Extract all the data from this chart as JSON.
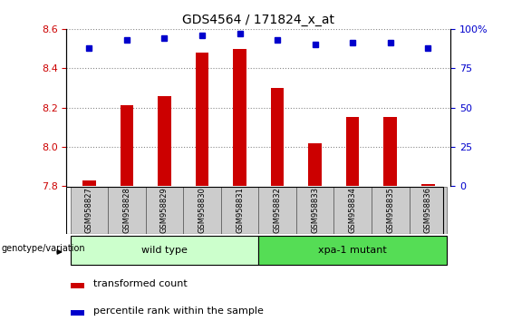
{
  "title": "GDS4564 / 171824_x_at",
  "samples": [
    "GSM958827",
    "GSM958828",
    "GSM958829",
    "GSM958830",
    "GSM958831",
    "GSM958832",
    "GSM958833",
    "GSM958834",
    "GSM958835",
    "GSM958836"
  ],
  "bar_values": [
    7.83,
    8.21,
    8.26,
    8.48,
    8.5,
    8.3,
    8.02,
    8.15,
    8.15,
    7.81
  ],
  "percentile_values": [
    88,
    93,
    94,
    96,
    97,
    93,
    90,
    91,
    91,
    88
  ],
  "ylim_left": [
    7.8,
    8.6
  ],
  "ylim_right": [
    0,
    100
  ],
  "yticks_left": [
    7.8,
    8.0,
    8.2,
    8.4,
    8.6
  ],
  "yticks_right": [
    0,
    25,
    50,
    75,
    100
  ],
  "bar_color": "#cc0000",
  "dot_color": "#0000cc",
  "bar_width": 0.35,
  "wild_type_label": "wild type",
  "mutant_label": "xpa-1 mutant",
  "wild_type_color": "#ccffcc",
  "mutant_color": "#55dd55",
  "group_label": "genotype/variation",
  "legend_bar_label": "transformed count",
  "legend_dot_label": "percentile rank within the sample",
  "tick_label_color_left": "#cc0000",
  "tick_label_color_right": "#0000cc",
  "grid_color": "#888888",
  "bg_color": "#ffffff",
  "xticklabel_bg": "#cccccc",
  "title_fontsize": 10,
  "axis_fontsize": 8,
  "legend_fontsize": 8
}
